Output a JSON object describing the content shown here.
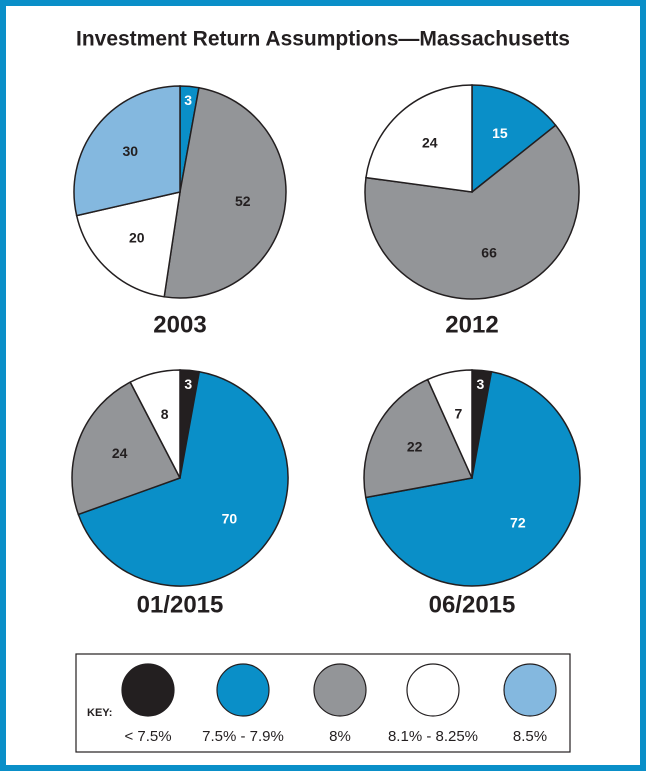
{
  "title": "Investment Return Assumptions—Massachusetts",
  "legend": {
    "label": "KEY:",
    "categories": [
      "< 7.5%",
      "7.5% - 7.9%",
      "8%",
      "8.1% - 8.25%",
      "8.5%"
    ],
    "colors": [
      "#231f20",
      "#0a8fc8",
      "#939598",
      "#ffffff",
      "#84b8df"
    ]
  },
  "chart_data": [
    {
      "type": "pie",
      "title": "2003",
      "values": [
        null,
        3,
        52,
        20,
        30
      ]
    },
    {
      "type": "pie",
      "title": "2012",
      "values": [
        null,
        15,
        66,
        24,
        null
      ]
    },
    {
      "type": "pie",
      "title": "01/2015",
      "values": [
        3,
        70,
        24,
        8,
        null
      ]
    },
    {
      "type": "pie",
      "title": "06/2015",
      "values": [
        3,
        72,
        22,
        7,
        null
      ]
    }
  ]
}
